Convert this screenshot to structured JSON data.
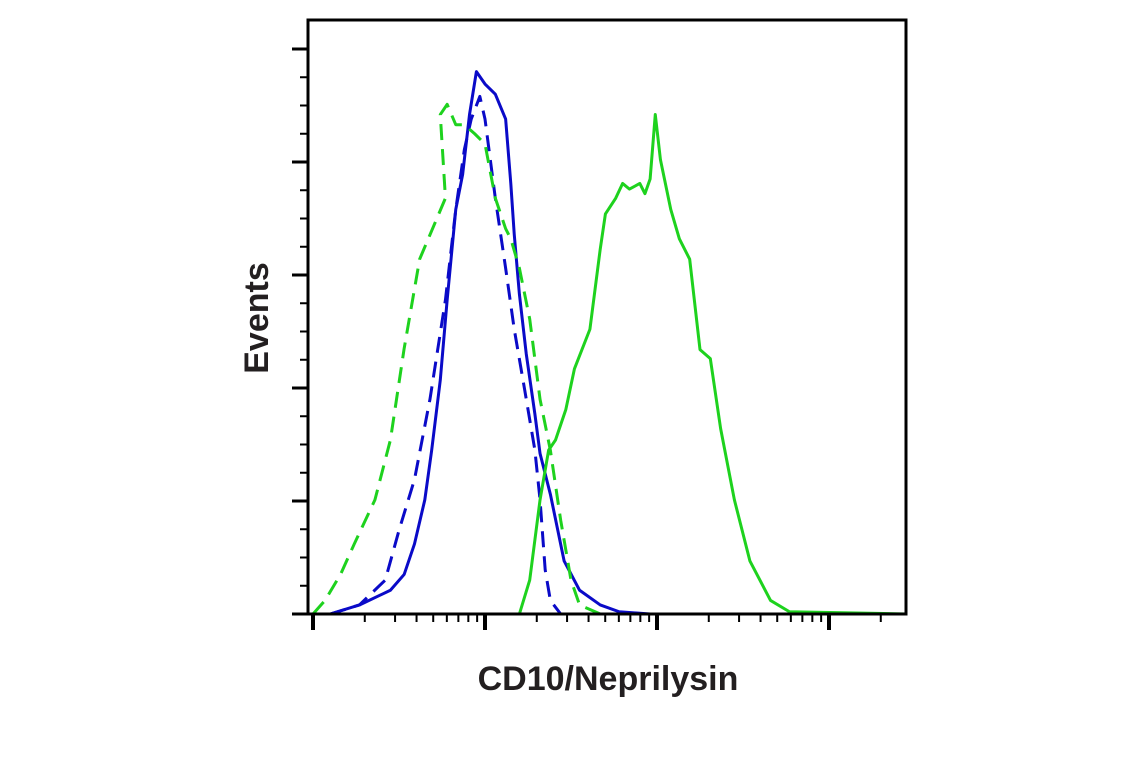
{
  "chart_data": {
    "type": "line",
    "title": "",
    "xlabel": "CD10/Neprilysin",
    "ylabel": "Events",
    "x_scale": "log",
    "x_unit_note": "",
    "xlim": [
      0,
      3.45
    ],
    "ylim": [
      0,
      5.25
    ],
    "x_major_ticks": [
      0,
      1,
      2,
      3
    ],
    "y_major_ticks": [
      0,
      1,
      2,
      3,
      4,
      5
    ],
    "grid": false,
    "legend": "none",
    "series": [
      {
        "color": "#0a0ac8",
        "dash": false,
        "points": [
          [
            0.1,
            0
          ],
          [
            0.27,
            0.08
          ],
          [
            0.45,
            0.21
          ],
          [
            0.53,
            0.35
          ],
          [
            0.59,
            0.62
          ],
          [
            0.65,
            1.01
          ],
          [
            0.69,
            1.45
          ],
          [
            0.74,
            2.07
          ],
          [
            0.78,
            2.78
          ],
          [
            0.83,
            3.58
          ],
          [
            0.87,
            3.89
          ],
          [
            0.91,
            4.42
          ],
          [
            0.95,
            4.8
          ],
          [
            1.0,
            4.69
          ],
          [
            1.06,
            4.6
          ],
          [
            1.12,
            4.38
          ],
          [
            1.15,
            3.81
          ],
          [
            1.17,
            3.36
          ],
          [
            1.2,
            2.83
          ],
          [
            1.24,
            2.3
          ],
          [
            1.29,
            1.77
          ],
          [
            1.32,
            1.42
          ],
          [
            1.38,
            1.06
          ],
          [
            1.46,
            0.47
          ],
          [
            1.55,
            0.21
          ],
          [
            1.67,
            0.08
          ],
          [
            1.78,
            0.02
          ],
          [
            1.96,
            0
          ],
          [
            3.45,
            0
          ]
        ]
      },
      {
        "color": "#0a0ac8",
        "dash": true,
        "points": [
          [
            0.1,
            0
          ],
          [
            0.27,
            0.08
          ],
          [
            0.42,
            0.3
          ],
          [
            0.5,
            0.74
          ],
          [
            0.59,
            1.19
          ],
          [
            0.68,
            1.9
          ],
          [
            0.77,
            2.78
          ],
          [
            0.83,
            3.58
          ],
          [
            0.88,
            4.11
          ],
          [
            0.92,
            4.38
          ],
          [
            0.97,
            4.58
          ],
          [
            1.0,
            4.38
          ],
          [
            1.06,
            3.68
          ],
          [
            1.12,
            3.06
          ],
          [
            1.17,
            2.52
          ],
          [
            1.23,
            1.99
          ],
          [
            1.29,
            1.45
          ],
          [
            1.32,
            1.01
          ],
          [
            1.35,
            0.39
          ],
          [
            1.38,
            0.12
          ],
          [
            1.44,
            0
          ]
        ]
      },
      {
        "color": "#1ed21e",
        "dash": true,
        "points": [
          [
            0,
            0
          ],
          [
            0.07,
            0.12
          ],
          [
            0.16,
            0.35
          ],
          [
            0.24,
            0.62
          ],
          [
            0.36,
            1.01
          ],
          [
            0.45,
            1.54
          ],
          [
            0.53,
            2.35
          ],
          [
            0.62,
            3.14
          ],
          [
            0.77,
            3.68
          ],
          [
            0.74,
            4.42
          ],
          [
            0.78,
            4.51
          ],
          [
            0.83,
            4.33
          ],
          [
            0.88,
            4.33
          ],
          [
            0.94,
            4.25
          ],
          [
            1.0,
            4.16
          ],
          [
            1.06,
            3.68
          ],
          [
            1.12,
            3.41
          ],
          [
            1.15,
            3.32
          ],
          [
            1.2,
            3.06
          ],
          [
            1.26,
            2.61
          ],
          [
            1.32,
            1.9
          ],
          [
            1.38,
            1.45
          ],
          [
            1.44,
            0.83
          ],
          [
            1.5,
            0.3
          ],
          [
            1.55,
            0.08
          ],
          [
            1.67,
            0
          ],
          [
            3.45,
            0
          ]
        ]
      },
      {
        "color": "#1ed21e",
        "dash": false,
        "points": [
          [
            1.2,
            0
          ],
          [
            1.26,
            0.3
          ],
          [
            1.32,
            1.01
          ],
          [
            1.37,
            1.45
          ],
          [
            1.41,
            1.54
          ],
          [
            1.47,
            1.81
          ],
          [
            1.52,
            2.17
          ],
          [
            1.61,
            2.52
          ],
          [
            1.67,
            3.23
          ],
          [
            1.7,
            3.54
          ],
          [
            1.76,
            3.68
          ],
          [
            1.8,
            3.81
          ],
          [
            1.84,
            3.76
          ],
          [
            1.9,
            3.81
          ],
          [
            1.93,
            3.72
          ],
          [
            1.96,
            3.85
          ],
          [
            1.99,
            4.42
          ],
          [
            2.02,
            4.02
          ],
          [
            2.08,
            3.58
          ],
          [
            2.13,
            3.32
          ],
          [
            2.19,
            3.14
          ],
          [
            2.25,
            2.34
          ],
          [
            2.31,
            2.26
          ],
          [
            2.37,
            1.64
          ],
          [
            2.45,
            1.01
          ],
          [
            2.54,
            0.47
          ],
          [
            2.66,
            0.12
          ],
          [
            2.77,
            0.02
          ],
          [
            3.45,
            0
          ]
        ]
      }
    ]
  }
}
